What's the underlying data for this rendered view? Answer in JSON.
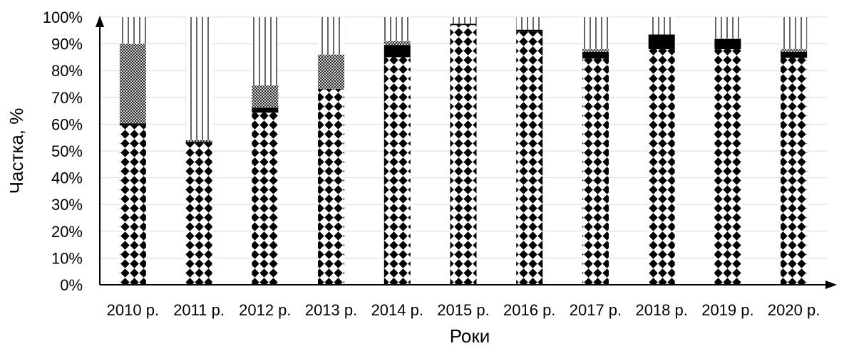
{
  "chart_data": {
    "type": "bar",
    "stacked": true,
    "percent": true,
    "xlabel": "Роки",
    "ylabel": "Частка, %",
    "ylim": [
      0,
      100
    ],
    "grid": true,
    "y_ticks": [
      "0%",
      "10%",
      "20%",
      "30%",
      "40%",
      "50%",
      "60%",
      "70%",
      "80%",
      "90%",
      "100%"
    ],
    "categories": [
      "2010 р.",
      "2011 р.",
      "2012 р.",
      "2013 р.",
      "2014 р.",
      "2015 р.",
      "2016 р.",
      "2017 р.",
      "2018 р.",
      "2019 р.",
      "2020 р."
    ],
    "series": [
      {
        "pattern": "dots",
        "values": [
          59.5,
          53,
          64.3,
          73,
          85,
          97,
          94.5,
          84.5,
          88,
          88,
          84.8
        ]
      },
      {
        "pattern": "solid",
        "values": [
          0.8,
          0.5,
          1.8,
          0.2,
          4.5,
          0.5,
          0.8,
          2.5,
          5.5,
          3.8,
          2.2
        ]
      },
      {
        "pattern": "crosshatch",
        "values": [
          29.7,
          0.5,
          8.4,
          12.8,
          1.5,
          0,
          0,
          1.0,
          0,
          0.2,
          1.0
        ]
      },
      {
        "pattern": "vertical-lines",
        "values": [
          10.0,
          46.0,
          25.5,
          14.0,
          9.0,
          2.5,
          4.7,
          12.0,
          6.5,
          8.0,
          12.0
        ]
      }
    ]
  }
}
